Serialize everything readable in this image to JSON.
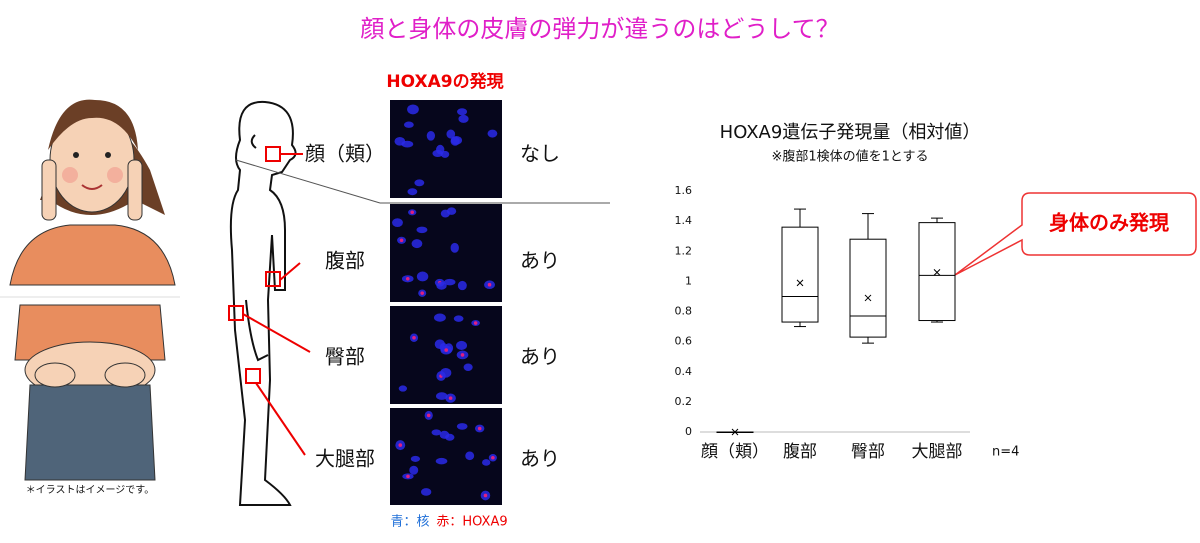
{
  "title": "顔と身体の皮膚の弾力が違うのはどうして？",
  "illustration_note": "＊イラストはイメージです。",
  "microscopy": {
    "title": "HOXA9の発現",
    "legend_blue": "青：核",
    "legend_red": "赤：HOXA9",
    "rows": [
      {
        "site": "顔（頬）",
        "result": "なし"
      },
      {
        "site": "腹部",
        "result": "あり"
      },
      {
        "site": "臀部",
        "result": "あり"
      },
      {
        "site": "大腿部",
        "result": "あり"
      }
    ]
  },
  "chart_data": {
    "type": "box",
    "title": "HOXA9遺伝子発現量（相対値）",
    "subtitle": "※腹部1検体の値を1とする",
    "categories": [
      "顔（頬）",
      "腹部",
      "臀部",
      "大腿部"
    ],
    "boxes": [
      {
        "min": 0,
        "q1": 0,
        "median": 0,
        "q3": 0,
        "max": 0,
        "mean": 0
      },
      {
        "min": 0.7,
        "q1": 0.73,
        "median": 0.9,
        "q3": 1.36,
        "max": 1.48,
        "mean": 0.99
      },
      {
        "min": 0.59,
        "q1": 0.63,
        "median": 0.77,
        "q3": 1.28,
        "max": 1.45,
        "mean": 0.89
      },
      {
        "min": 0.73,
        "q1": 0.74,
        "median": 1.04,
        "q3": 1.39,
        "max": 1.42,
        "mean": 1.06
      }
    ],
    "ylim": [
      0,
      1.6
    ],
    "yticks": [
      0,
      0.2,
      0.4,
      0.6,
      0.8,
      1,
      1.2,
      1.4,
      1.6
    ],
    "annotation": "身体のみ発現",
    "note": "n=4",
    "color": "#000000"
  }
}
